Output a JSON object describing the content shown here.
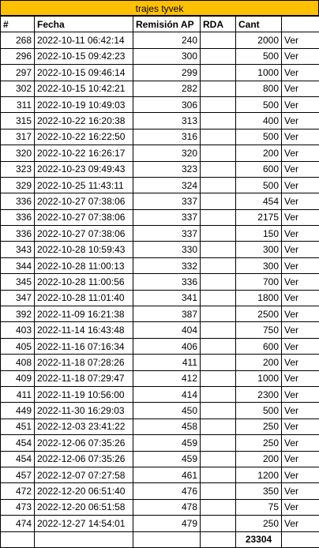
{
  "title": "trajes tyvek",
  "headers": {
    "id": "#",
    "fecha": "Fecha",
    "remision": "Remisión AP",
    "rda": "RDA",
    "cant": "Cant",
    "ver": ""
  },
  "rows": [
    {
      "id": "268",
      "fecha": "2022-10-11 06:42:14",
      "remision": "240",
      "rda": "",
      "cant": "2000",
      "ver": "Ver"
    },
    {
      "id": "296",
      "fecha": "2022-10-15 09:42:23",
      "remision": "300",
      "rda": "",
      "cant": "500",
      "ver": "Ver"
    },
    {
      "id": "297",
      "fecha": "2022-10-15 09:46:14",
      "remision": "299",
      "rda": "",
      "cant": "1000",
      "ver": "Ver"
    },
    {
      "id": "302",
      "fecha": "2022-10-15 10:42:21",
      "remision": "282",
      "rda": "",
      "cant": "800",
      "ver": "Ver"
    },
    {
      "id": "311",
      "fecha": "2022-10-19 10:49:03",
      "remision": "306",
      "rda": "",
      "cant": "500",
      "ver": "Ver"
    },
    {
      "id": "315",
      "fecha": "2022-10-22 16:20:38",
      "remision": "313",
      "rda": "",
      "cant": "400",
      "ver": "Ver"
    },
    {
      "id": "317",
      "fecha": "2022-10-22 16:22:50",
      "remision": "316",
      "rda": "",
      "cant": "500",
      "ver": "Ver"
    },
    {
      "id": "320",
      "fecha": "2022-10-22 16:26:17",
      "remision": "320",
      "rda": "",
      "cant": "200",
      "ver": "Ver"
    },
    {
      "id": "323",
      "fecha": "2022-10-23 09:49:43",
      "remision": "323",
      "rda": "",
      "cant": "600",
      "ver": "Ver"
    },
    {
      "id": "329",
      "fecha": "2022-10-25 11:43:11",
      "remision": "324",
      "rda": "",
      "cant": "500",
      "ver": "Ver"
    },
    {
      "id": "336",
      "fecha": "2022-10-27 07:38:06",
      "remision": "337",
      "rda": "",
      "cant": "454",
      "ver": "Ver"
    },
    {
      "id": "336",
      "fecha": "2022-10-27 07:38:06",
      "remision": "337",
      "rda": "",
      "cant": "2175",
      "ver": "Ver"
    },
    {
      "id": "336",
      "fecha": "2022-10-27 07:38:06",
      "remision": "337",
      "rda": "",
      "cant": "150",
      "ver": "Ver"
    },
    {
      "id": "343",
      "fecha": "2022-10-28 10:59:43",
      "remision": "330",
      "rda": "",
      "cant": "300",
      "ver": "Ver"
    },
    {
      "id": "344",
      "fecha": "2022-10-28 11:00:13",
      "remision": "332",
      "rda": "",
      "cant": "300",
      "ver": "Ver"
    },
    {
      "id": "345",
      "fecha": "2022-10-28 11:00:56",
      "remision": "336",
      "rda": "",
      "cant": "700",
      "ver": "Ver"
    },
    {
      "id": "347",
      "fecha": "2022-10-28 11:01:40",
      "remision": "341",
      "rda": "",
      "cant": "1800",
      "ver": "Ver"
    },
    {
      "id": "392",
      "fecha": "2022-11-09 16:21:38",
      "remision": "387",
      "rda": "",
      "cant": "2500",
      "ver": "Ver"
    },
    {
      "id": "403",
      "fecha": "2022-11-14 16:43:48",
      "remision": "404",
      "rda": "",
      "cant": "750",
      "ver": "Ver"
    },
    {
      "id": "405",
      "fecha": "2022-11-16 07:16:34",
      "remision": "406",
      "rda": "",
      "cant": "600",
      "ver": "Ver"
    },
    {
      "id": "408",
      "fecha": "2022-11-18 07:28:26",
      "remision": "411",
      "rda": "",
      "cant": "200",
      "ver": "Ver"
    },
    {
      "id": "409",
      "fecha": "2022-11-18 07:29:47",
      "remision": "412",
      "rda": "",
      "cant": "1000",
      "ver": "Ver"
    },
    {
      "id": "411",
      "fecha": "2022-11-19 10:56:00",
      "remision": "414",
      "rda": "",
      "cant": "2300",
      "ver": "Ver"
    },
    {
      "id": "449",
      "fecha": "2022-11-30 16:29:03",
      "remision": "450",
      "rda": "",
      "cant": "500",
      "ver": "Ver"
    },
    {
      "id": "451",
      "fecha": "2022-12-03 23:41:22",
      "remision": "458",
      "rda": "",
      "cant": "250",
      "ver": "Ver"
    },
    {
      "id": "454",
      "fecha": "2022-12-06 07:35:26",
      "remision": "459",
      "rda": "",
      "cant": "250",
      "ver": "Ver"
    },
    {
      "id": "454",
      "fecha": "2022-12-06 07:35:26",
      "remision": "459",
      "rda": "",
      "cant": "200",
      "ver": "Ver"
    },
    {
      "id": "457",
      "fecha": "2022-12-07 07:27:58",
      "remision": "461",
      "rda": "",
      "cant": "1200",
      "ver": "Ver"
    },
    {
      "id": "472",
      "fecha": "2022-12-20 06:51:40",
      "remision": "476",
      "rda": "",
      "cant": "350",
      "ver": "Ver"
    },
    {
      "id": "473",
      "fecha": "2022-12-20 06:51:58",
      "remision": "478",
      "rda": "",
      "cant": "75",
      "ver": "Ver"
    },
    {
      "id": "474",
      "fecha": "2022-12-27 14:54:01",
      "remision": "479",
      "rda": "",
      "cant": "250",
      "ver": "Ver"
    }
  ],
  "total": "23304",
  "colors": {
    "title_bg": "#ffc000",
    "border": "#000000"
  }
}
